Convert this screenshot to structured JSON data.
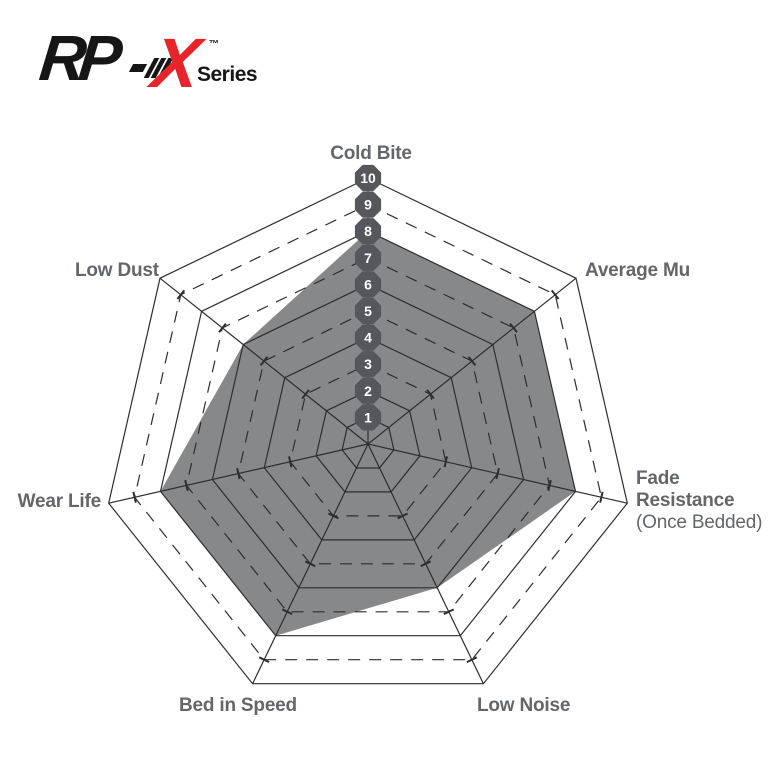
{
  "logo": {
    "rp": "RP",
    "x": "X",
    "tm": "™",
    "series": "Series",
    "black_color": "#161616",
    "red_color": "#e8242b"
  },
  "labels": {
    "cold_bite": "Cold Bite",
    "average_mu": "Average Mu",
    "fade_line1": "Fade",
    "fade_line2": "Resistance",
    "fade_line3": "(Once Bedded)",
    "low_noise": "Low Noise",
    "bed_in_speed": "Bed in Speed",
    "wear_life": "Wear Life",
    "low_dust": "Low Dust"
  },
  "chart_data": {
    "type": "radar",
    "axes": [
      "Cold Bite",
      "Average Mu",
      "Fade Resistance (Once Bedded)",
      "Low Noise",
      "Bed in Speed",
      "Wear Life",
      "Low Dust"
    ],
    "series": [
      {
        "name": "RP-X Series",
        "values": [
          8,
          8,
          8,
          6,
          8,
          8,
          6
        ]
      }
    ],
    "scale": {
      "min": 0,
      "max": 10,
      "ring_labels": [
        "1",
        "2",
        "3",
        "4",
        "5",
        "6",
        "7",
        "8",
        "9",
        "10"
      ],
      "solid_rings": [
        1,
        2,
        4,
        6,
        8,
        10
      ],
      "dashed_rings": [
        3,
        5,
        7,
        9
      ]
    },
    "legend": "none",
    "grid": "heptagonal rings with tick marks on spokes at dashed rings",
    "fill_color": "#87888a",
    "line_color": "#2e2e30",
    "badge_color": "#56575a",
    "label_color": "#63666a"
  }
}
